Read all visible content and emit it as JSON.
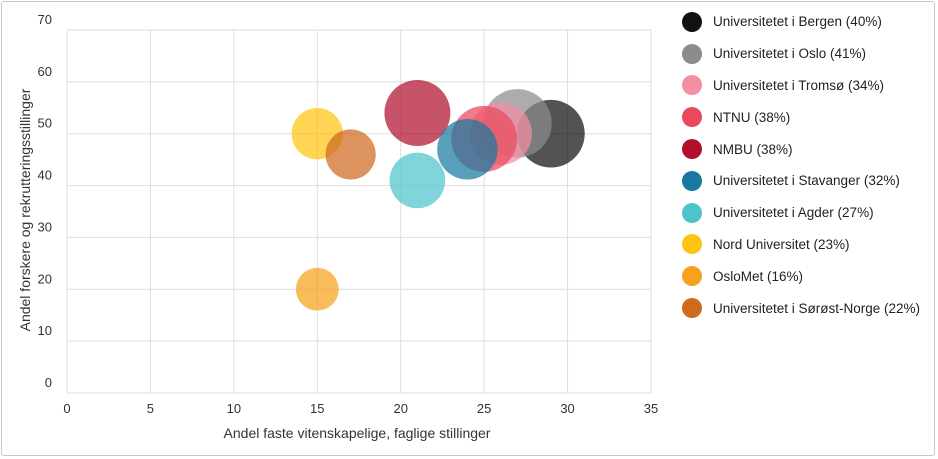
{
  "chart_data": {
    "type": "scatter",
    "subtype": "bubble",
    "xlabel": "Andel faste vitenskapelige, faglige stillinger",
    "ylabel": "Andel forskere og rekrutteringsstillinger",
    "xlim": [
      0,
      35
    ],
    "ylim": [
      0,
      70
    ],
    "xticks": [
      "0",
      "5",
      "10",
      "15",
      "20",
      "25",
      "30",
      "35"
    ],
    "yticks": [
      "0",
      "10",
      "20",
      "30",
      "40",
      "50",
      "60",
      "70"
    ],
    "grid": true,
    "legend_position": "right",
    "series": [
      {
        "name": "Universitetet i Bergen (40%)",
        "x": 29,
        "y": 50,
        "size": 40,
        "color": "#111111"
      },
      {
        "name": "Universitetet i Oslo (41%)",
        "x": 27,
        "y": 52,
        "size": 41,
        "color": "#8c8c8c"
      },
      {
        "name": "Universitetet i Tromsø (34%)",
        "x": 26,
        "y": 50,
        "size": 34,
        "color": "#f48fa2"
      },
      {
        "name": "NTNU (38%)",
        "x": 25,
        "y": 49,
        "size": 38,
        "color": "#ea4a5e"
      },
      {
        "name": "NMBU (38%)",
        "x": 21,
        "y": 54,
        "size": 38,
        "color": "#b0102c"
      },
      {
        "name": "Universitetet i Stavanger (32%)",
        "x": 24,
        "y": 47,
        "size": 32,
        "color": "#1978a0"
      },
      {
        "name": "Universitetet i Agder (27%)",
        "x": 21,
        "y": 41,
        "size": 27,
        "color": "#4fc3cc"
      },
      {
        "name": "Nord Universitet (23%)",
        "x": 15,
        "y": 50,
        "size": 23,
        "color": "#ffc510"
      },
      {
        "name": "OsloMet (16%)",
        "x": 15,
        "y": 20,
        "size": 16,
        "color": "#f7a21a"
      },
      {
        "name": "Universitetet i Sørøst-Norge (22%)",
        "x": 17,
        "y": 46,
        "size": 22,
        "color": "#cf6a1e"
      }
    ]
  }
}
